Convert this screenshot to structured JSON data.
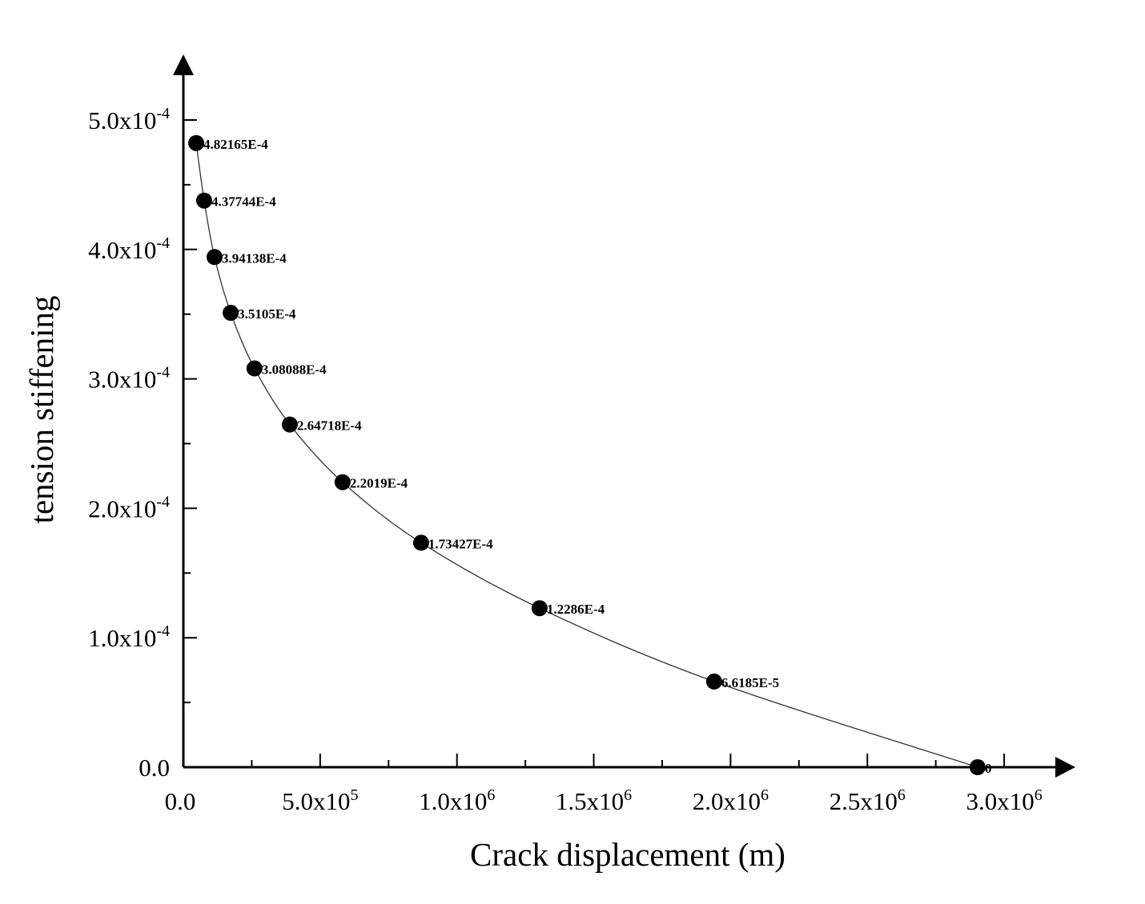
{
  "chart_data": {
    "type": "line",
    "title": "",
    "xlabel": "Crack displacement (m)",
    "ylabel": "tension stiffening",
    "xlim": [
      0,
      3200000.0
    ],
    "ylim": [
      0,
      0.00055
    ],
    "grid": false,
    "legend": "none",
    "x_ticks": [
      {
        "value": 0,
        "label": "0.0",
        "exp": ""
      },
      {
        "value": 500000,
        "label": "5.0x10",
        "exp": "5"
      },
      {
        "value": 1000000,
        "label": "1.0x10",
        "exp": "6"
      },
      {
        "value": 1500000,
        "label": "1.5x10",
        "exp": "6"
      },
      {
        "value": 2000000,
        "label": "2.0x10",
        "exp": "6"
      },
      {
        "value": 2500000,
        "label": "2.5x10",
        "exp": "6"
      },
      {
        "value": 3000000,
        "label": "3.0x10",
        "exp": "6"
      }
    ],
    "y_ticks": [
      {
        "value": 0,
        "label": "0.0",
        "exp": ""
      },
      {
        "value": 0.0001,
        "label": "1.0x10",
        "exp": "-4"
      },
      {
        "value": 0.0002,
        "label": "2.0x10",
        "exp": "-4"
      },
      {
        "value": 0.0003,
        "label": "3.0x10",
        "exp": "-4"
      },
      {
        "value": 0.0004,
        "label": "4.0x10",
        "exp": "-4"
      },
      {
        "value": 0.0005,
        "label": "5.0x10",
        "exp": "-4"
      }
    ],
    "series": [
      {
        "name": "tension stiffening",
        "color": "#000000",
        "x": [
          47000,
          76000,
          114000,
          173000,
          260000,
          389000,
          582000,
          869000,
          1302000,
          1940000,
          2903000
        ],
        "y": [
          0.000482165,
          0.000437744,
          0.000394138,
          0.00035105,
          0.000308088,
          0.000264718,
          0.00022019,
          0.000173427,
          0.00012286,
          6.6185e-05,
          0
        ],
        "labels": [
          "4.82165E-4",
          "4.37744E-4",
          "3.94138E-4",
          "3.5105E-4",
          "3.08088E-4",
          "2.64718E-4",
          "2.2019E-4",
          "1.73427E-4",
          "1.2286E-4",
          "6.6185E-5",
          "0"
        ]
      }
    ]
  }
}
